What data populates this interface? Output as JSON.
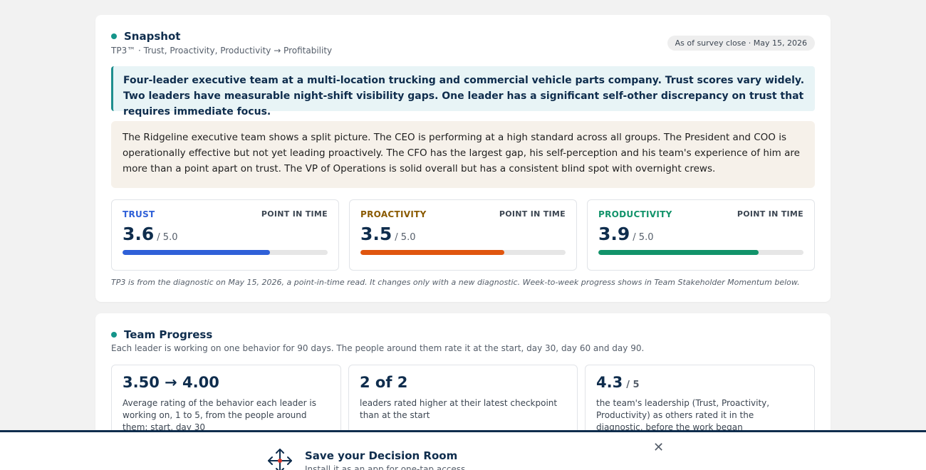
{
  "snapshot": {
    "title": "Snapshot",
    "subtitle": "TP3™ · Trust, Proactivity, Productivity → Profitability",
    "date_badge": "As of survey close · May 15, 2026",
    "headline": "Four-leader executive team at a multi-location trucking and commercial vehicle parts company. Trust scores vary widely. Two leaders have measurable night-shift visibility gaps. One leader has a significant self-other discrepancy on trust that requires immediate focus.",
    "summary": "The Ridgeline executive team shows a split picture. The CEO is performing at a high standard across all groups. The President and COO is operationally effective but not yet leading proactively. The CFO has the largest gap, his self-perception and his team's experience of him are more than a point apart on trust. The VP of Operations is solid overall but has a consistent blind spot with overnight crews.",
    "metrics": [
      {
        "label": "TRUST",
        "tag": "POINT IN TIME",
        "value": "3.6",
        "scale": "/ 5.0",
        "score": 3.6,
        "max": 5,
        "color": "#2f60d8"
      },
      {
        "label": "PROACTIVITY",
        "tag": "POINT IN TIME",
        "value": "3.5",
        "scale": "/ 5.0",
        "score": 3.5,
        "max": 5,
        "color": "#e0560f",
        "label_color": "#8a5a00"
      },
      {
        "label": "PRODUCTIVITY",
        "tag": "POINT IN TIME",
        "value": "3.9",
        "scale": "/ 5.0",
        "score": 3.9,
        "max": 5,
        "color": "#12936a"
      }
    ],
    "footnote": "TP3 is from the diagnostic on May 15, 2026, a point-in-time read. It changes only with a new diagnostic. Week-to-week progress shows in Team Stakeholder Momentum below."
  },
  "progress": {
    "title": "Team Progress",
    "subtitle": "Each leader is working on one behavior for 90 days. The people around them rate it at the start, day 30, day 60 and day 90.",
    "stats": [
      {
        "value": "3.50 → 4.00",
        "small": "",
        "desc": "Average rating of the behavior each leader is working on, 1 to 5, from the people around them: start, day 30"
      },
      {
        "value": "2 of 2",
        "small": "",
        "desc": "leaders rated higher at their latest checkpoint than at the start"
      },
      {
        "value": "4.3",
        "small": "/ 5",
        "desc": "the team's leadership (Trust, Proactivity, Productivity) as others rated it in the diagnostic, before the work began"
      }
    ]
  },
  "install": {
    "title": "Save your Decision Room",
    "subtitle": "Install it as an app for one-tap access",
    "close": "✕",
    "icon": "arrows-compass-icon"
  },
  "colors": {
    "navy": "#0f2d4d",
    "teal": "#14958a",
    "trust_label": "#2f60d8",
    "productivity_label": "#12936a"
  }
}
